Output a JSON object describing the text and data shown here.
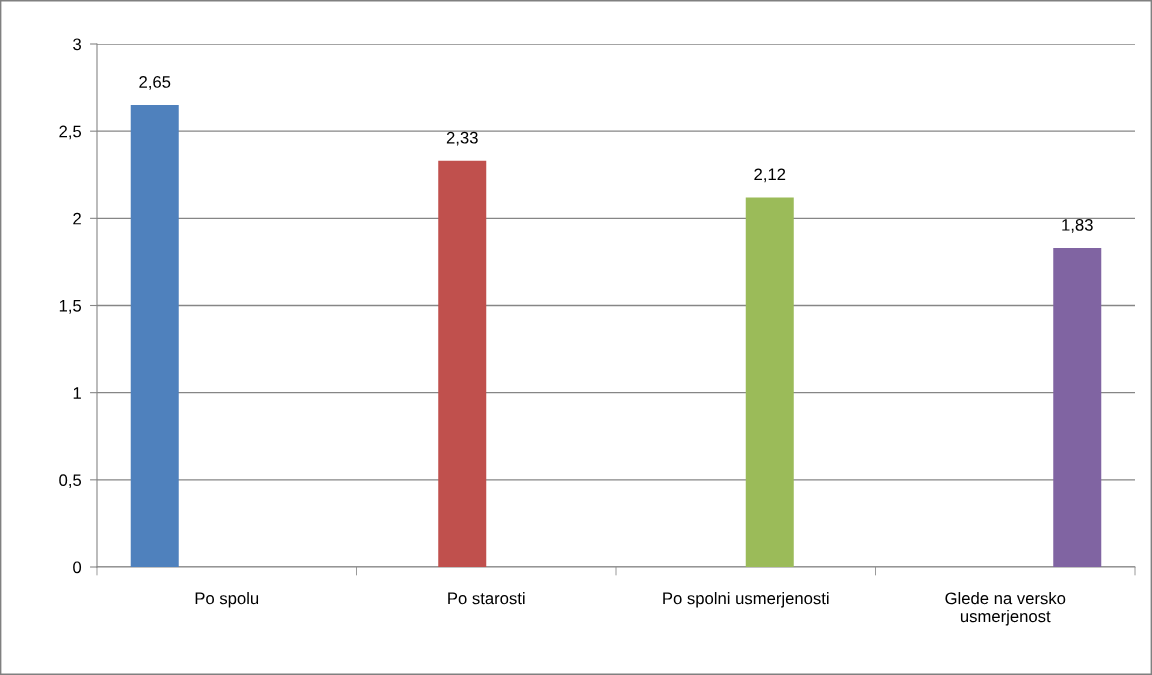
{
  "chart_data": {
    "type": "bar",
    "categories": [
      "Po spolu",
      "Po starosti",
      "Po spolni usmerjenosti",
      "Glede na versko\nusmerjenost"
    ],
    "series": [
      {
        "color": "#4f81bd",
        "values": [
          2.65,
          null,
          null,
          null
        ],
        "value_labels": [
          "2,65",
          null,
          null,
          null
        ]
      },
      {
        "color": "#c0504d",
        "values": [
          null,
          2.33,
          null,
          null
        ],
        "value_labels": [
          null,
          "2,33",
          null,
          null
        ]
      },
      {
        "color": "#9bbb59",
        "values": [
          null,
          null,
          2.12,
          null
        ],
        "value_labels": [
          null,
          null,
          "2,12",
          null
        ]
      },
      {
        "color": "#8064a2",
        "values": [
          null,
          null,
          null,
          1.83
        ],
        "value_labels": [
          null,
          null,
          null,
          "1,83"
        ]
      }
    ],
    "ylim": [
      0,
      3
    ],
    "yticks": [
      0,
      {
        "value": 0.5,
        "label": "0,5"
      },
      1,
      {
        "value": 1.5,
        "label": "1,5"
      },
      2,
      {
        "value": 2.5,
        "label": "2,5"
      },
      3
    ],
    "grid": "y",
    "legend": false
  }
}
